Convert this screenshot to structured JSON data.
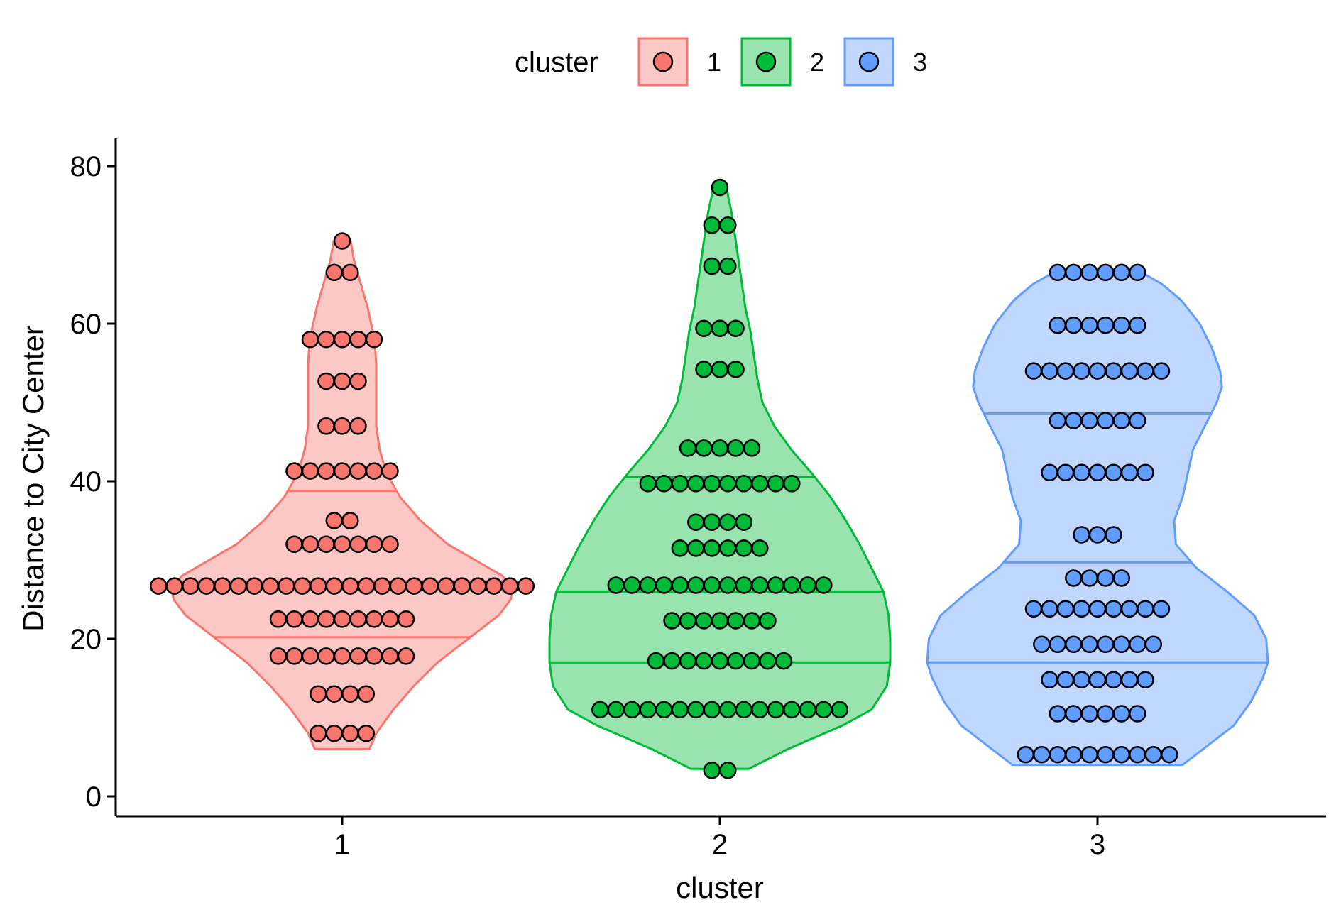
{
  "chart_data": {
    "type": "violin",
    "title": "",
    "xlabel": "cluster",
    "ylabel": "Distance to City Center",
    "legend": {
      "title": "cluster",
      "position": "top",
      "entries": [
        "1",
        "2",
        "3"
      ]
    },
    "categories": [
      "1",
      "2",
      "3"
    ],
    "ylim": [
      0,
      83
    ],
    "yticks": [
      0,
      20,
      40,
      60,
      80
    ],
    "grid": false,
    "colors": {
      "1": {
        "fill": "#F8766D",
        "line": "#F8766D"
      },
      "2": {
        "fill": "#00BA38",
        "line": "#00BA38"
      },
      "3": {
        "fill": "#619CFF",
        "line": "#619CFF"
      }
    },
    "series": [
      {
        "name": "1",
        "quantiles": [
          20.2,
          27.3,
          38.8
        ],
        "density": [
          [
            6,
            0.16
          ],
          [
            8,
            0.2
          ],
          [
            11,
            0.3
          ],
          [
            14,
            0.42
          ],
          [
            17,
            0.56
          ],
          [
            20,
            0.74
          ],
          [
            23,
            0.92
          ],
          [
            25,
            0.99
          ],
          [
            26.5,
            1.0
          ],
          [
            28,
            0.94
          ],
          [
            30,
            0.78
          ],
          [
            32,
            0.62
          ],
          [
            35,
            0.46
          ],
          [
            38,
            0.34
          ],
          [
            41,
            0.26
          ],
          [
            44,
            0.22
          ],
          [
            47,
            0.2
          ],
          [
            50,
            0.2
          ],
          [
            53,
            0.2
          ],
          [
            55,
            0.2
          ],
          [
            58,
            0.19
          ],
          [
            62,
            0.15
          ],
          [
            65,
            0.11
          ],
          [
            68,
            0.07
          ],
          [
            70.5,
            0.05
          ]
        ],
        "points": [
          {
            "y": 8,
            "n": 4
          },
          {
            "y": 13,
            "n": 4
          },
          {
            "y": 17.8,
            "n": 9
          },
          {
            "y": 22.5,
            "n": 9
          },
          {
            "y": 26.7,
            "n": 24
          },
          {
            "y": 32,
            "n": 7
          },
          {
            "y": 35,
            "n": 2
          },
          {
            "y": 41.3,
            "n": 7
          },
          {
            "y": 47,
            "n": 3
          },
          {
            "y": 52.7,
            "n": 3
          },
          {
            "y": 58,
            "n": 5
          },
          {
            "y": 66.5,
            "n": 2
          },
          {
            "y": 70.5,
            "n": 1
          }
        ]
      },
      {
        "name": "2",
        "quantiles": [
          17,
          26,
          40.5
        ],
        "density": [
          [
            3.5,
            0.17
          ],
          [
            6,
            0.4
          ],
          [
            9,
            0.72
          ],
          [
            11,
            0.89
          ],
          [
            14,
            0.98
          ],
          [
            17,
            1.0
          ],
          [
            20,
            1.0
          ],
          [
            23,
            0.99
          ],
          [
            26,
            0.96
          ],
          [
            29,
            0.89
          ],
          [
            32,
            0.82
          ],
          [
            35,
            0.74
          ],
          [
            38,
            0.65
          ],
          [
            41,
            0.54
          ],
          [
            44,
            0.42
          ],
          [
            47,
            0.32
          ],
          [
            50,
            0.25
          ],
          [
            53,
            0.22
          ],
          [
            56,
            0.2
          ],
          [
            59,
            0.18
          ],
          [
            62,
            0.15
          ],
          [
            65,
            0.13
          ],
          [
            68,
            0.11
          ],
          [
            71,
            0.09
          ],
          [
            74,
            0.07
          ],
          [
            76,
            0.05
          ],
          [
            77.3,
            0.04
          ]
        ],
        "points": [
          {
            "y": 3.3,
            "n": 2
          },
          {
            "y": 11,
            "n": 16
          },
          {
            "y": 17.2,
            "n": 9
          },
          {
            "y": 22.3,
            "n": 7
          },
          {
            "y": 26.8,
            "n": 14
          },
          {
            "y": 31.5,
            "n": 6
          },
          {
            "y": 34.8,
            "n": 4
          },
          {
            "y": 39.7,
            "n": 10
          },
          {
            "y": 44.2,
            "n": 5
          },
          {
            "y": 54.2,
            "n": 3
          },
          {
            "y": 59.4,
            "n": 3
          },
          {
            "y": 67.3,
            "n": 2
          },
          {
            "y": 72.5,
            "n": 2
          },
          {
            "y": 77.3,
            "n": 1
          }
        ]
      },
      {
        "name": "3",
        "quantiles": [
          17,
          29.7,
          48.6
        ],
        "density": [
          [
            4,
            0.5
          ],
          [
            6,
            0.62
          ],
          [
            9,
            0.8
          ],
          [
            12,
            0.9
          ],
          [
            15,
            0.97
          ],
          [
            17,
            1.0
          ],
          [
            20,
            0.99
          ],
          [
            23,
            0.92
          ],
          [
            26,
            0.76
          ],
          [
            29,
            0.58
          ],
          [
            32,
            0.46
          ],
          [
            35,
            0.45
          ],
          [
            38,
            0.5
          ],
          [
            41,
            0.53
          ],
          [
            44,
            0.56
          ],
          [
            47,
            0.63
          ],
          [
            50,
            0.7
          ],
          [
            52,
            0.73
          ],
          [
            54,
            0.72
          ],
          [
            57,
            0.67
          ],
          [
            60,
            0.6
          ],
          [
            63,
            0.49
          ],
          [
            65,
            0.38
          ],
          [
            66.5,
            0.26
          ]
        ],
        "points": [
          {
            "y": 5.3,
            "n": 10
          },
          {
            "y": 10.5,
            "n": 6
          },
          {
            "y": 14.8,
            "n": 7
          },
          {
            "y": 19.3,
            "n": 8
          },
          {
            "y": 23.8,
            "n": 9
          },
          {
            "y": 27.7,
            "n": 4
          },
          {
            "y": 33.2,
            "n": 3
          },
          {
            "y": 41.1,
            "n": 7
          },
          {
            "y": 47.7,
            "n": 6
          },
          {
            "y": 54,
            "n": 9
          },
          {
            "y": 59.8,
            "n": 6
          },
          {
            "y": 66.5,
            "n": 6
          }
        ]
      }
    ]
  }
}
